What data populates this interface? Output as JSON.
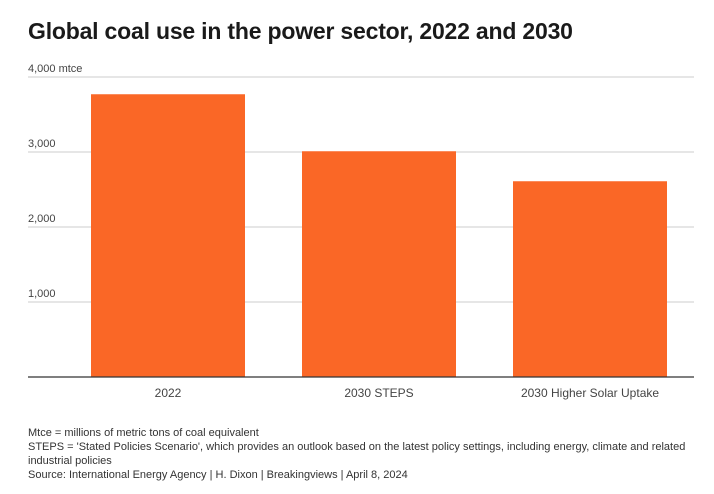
{
  "title": "Global coal use in the power sector, 2022 and 2030",
  "chart_data": {
    "type": "bar",
    "categories": [
      "2022",
      "2030 STEPS",
      "2030 Higher Solar Uptake"
    ],
    "values": [
      3770,
      3010,
      2610
    ],
    "y_ticks": [
      {
        "value": 1000,
        "label": "1,000"
      },
      {
        "value": 2000,
        "label": "2,000"
      },
      {
        "value": 3000,
        "label": "3,000"
      },
      {
        "value": 4000,
        "label": "4,000 mtce"
      }
    ],
    "ylim": [
      0,
      4000
    ],
    "grid": true,
    "legend": "none",
    "bar_color": "#fa6726",
    "grid_color": "#cccccc",
    "axis_color": "#333333"
  },
  "notes": {
    "mtce": "Mtce = millions of metric tons of coal equivalent",
    "steps": "STEPS = 'Stated Policies Scenario', which provides an outlook based on the latest policy settings, including energy, climate and related industrial policies",
    "source": "Source: International Energy Agency | H. Dixon | Breakingviews | April 8, 2024"
  }
}
